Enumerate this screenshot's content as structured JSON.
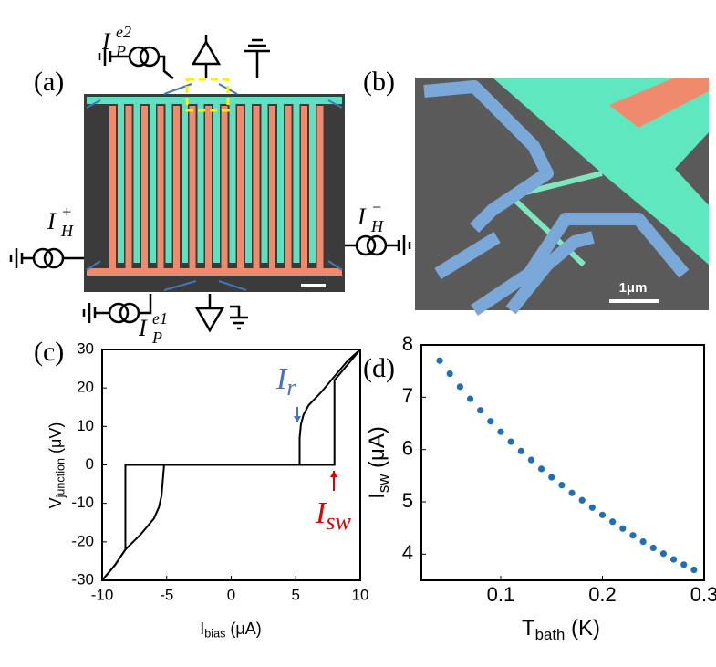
{
  "panels": {
    "a": {
      "label": "(a)",
      "annotations": [
        {
          "base": "I",
          "sub": "P",
          "sup": "e2"
        },
        {
          "base": "I",
          "sub": "H",
          "sup": "+"
        },
        {
          "base": "I",
          "sub": "H",
          "sup": "−"
        },
        {
          "base": "I",
          "sub": "P",
          "sup": "e1"
        }
      ]
    },
    "b": {
      "label": "(b)",
      "scale_bar": "1μm"
    }
  },
  "chart_data": [
    {
      "type": "line",
      "label": "(c)",
      "xlabel": {
        "main": "I",
        "sub": "bias",
        "unit": " (μA)"
      },
      "ylabel": {
        "main": "V",
        "sub": "junction",
        "unit": " (μV)"
      },
      "xlim": [
        -10,
        10
      ],
      "xticks": [
        -10,
        -5,
        0,
        5,
        10
      ],
      "ylim": [
        -30,
        30
      ],
      "yticks": [
        -30,
        -20,
        -10,
        0,
        10,
        20,
        30
      ],
      "series": [
        {
          "color": "#000000",
          "x": [
            -10,
            -9,
            -8.2,
            -7,
            -6,
            -5.6,
            -5.4,
            -5.3,
            -5.2,
            0,
            5,
            8,
            8,
            8.5,
            9,
            9.5,
            10
          ],
          "values": [
            -30,
            -26,
            -22,
            -18,
            -14,
            -11,
            -8,
            -4,
            0,
            0,
            0,
            0,
            22,
            24,
            26,
            28,
            30
          ]
        },
        {
          "color": "#000000",
          "x": [
            10,
            9,
            8,
            7,
            6,
            5.6,
            5.4,
            5.3,
            5.3,
            0,
            -5,
            -8.2,
            -8.2,
            -9,
            -10
          ],
          "values": [
            30,
            27,
            23,
            19,
            15.5,
            13,
            10.5,
            7,
            0,
            0,
            0,
            0,
            -22,
            -26,
            -30
          ]
        }
      ],
      "annotations": [
        {
          "main": "I",
          "sub": "r",
          "color": "#4472c4"
        },
        {
          "main": "I",
          "sub": "sw",
          "color": "#e00000"
        }
      ]
    },
    {
      "type": "scatter",
      "label": "(d)",
      "xlabel": {
        "main": "T",
        "sub": "bath",
        "unit": " (K)"
      },
      "ylabel": {
        "main": "I",
        "sub": "sw",
        "unit": " (μA)"
      },
      "xlim": [
        0.022,
        0.3
      ],
      "xticks": [
        0.1,
        0.2,
        0.3
      ],
      "ylim": [
        3.5,
        8
      ],
      "yticks": [
        4,
        5,
        6,
        7,
        8
      ],
      "color": "#1f6fb4",
      "x": [
        0.04,
        0.05,
        0.06,
        0.07,
        0.08,
        0.09,
        0.1,
        0.11,
        0.12,
        0.13,
        0.14,
        0.15,
        0.16,
        0.17,
        0.18,
        0.19,
        0.2,
        0.21,
        0.22,
        0.23,
        0.24,
        0.25,
        0.26,
        0.27,
        0.28,
        0.29
      ],
      "values": [
        7.7,
        7.45,
        7.2,
        6.97,
        6.75,
        6.54,
        6.34,
        6.15,
        5.97,
        5.8,
        5.63,
        5.47,
        5.32,
        5.17,
        5.03,
        4.89,
        4.75,
        4.62,
        4.49,
        4.36,
        4.24,
        4.12,
        4.01,
        3.9,
        3.8,
        3.7
      ]
    }
  ]
}
